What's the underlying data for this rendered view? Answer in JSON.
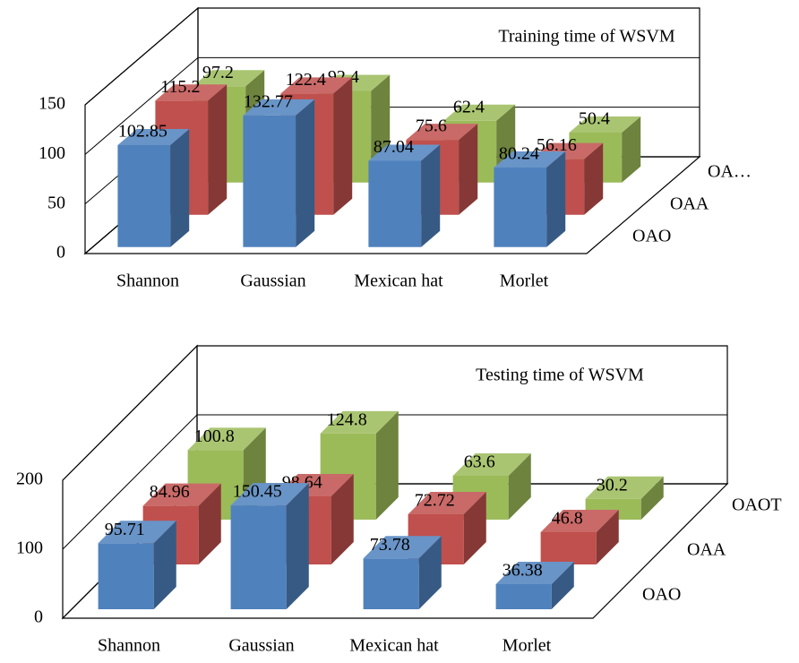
{
  "chart_data": [
    {
      "type": "bar3d",
      "title": "Training time of WSVM",
      "categories": [
        "Shannon",
        "Gaussian",
        "Mexican hat",
        "Morlet"
      ],
      "series": [
        {
          "name": "OAO",
          "color": "#4f81bd",
          "values": [
            102.85,
            132.77,
            87.04,
            80.24
          ]
        },
        {
          "name": "OAA",
          "color": "#c0504d",
          "values": [
            115.2,
            122.4,
            75.6,
            56.16
          ]
        },
        {
          "name": "OA…",
          "color": "#9bbb59",
          "values": [
            97.2,
            92.4,
            62.4,
            50.4
          ]
        }
      ],
      "ylim": [
        0,
        150
      ],
      "yticks": [
        0,
        50,
        100,
        150
      ],
      "grid": true
    },
    {
      "type": "bar3d",
      "title": "Testing time of WSVM",
      "categories": [
        "Shannon",
        "Gaussian",
        "Mexican hat",
        "Morlet"
      ],
      "series": [
        {
          "name": "OAO",
          "color": "#4f81bd",
          "values": [
            95.71,
            150.45,
            73.78,
            36.38
          ]
        },
        {
          "name": "OAA",
          "color": "#c0504d",
          "values": [
            84.96,
            98.64,
            72.72,
            46.8
          ]
        },
        {
          "name": "OAOT",
          "color": "#9bbb59",
          "values": [
            100.8,
            124.8,
            63.6,
            30.2
          ]
        }
      ],
      "ylim": [
        0,
        200
      ],
      "yticks": [
        0,
        100,
        200
      ],
      "grid": true
    }
  ]
}
